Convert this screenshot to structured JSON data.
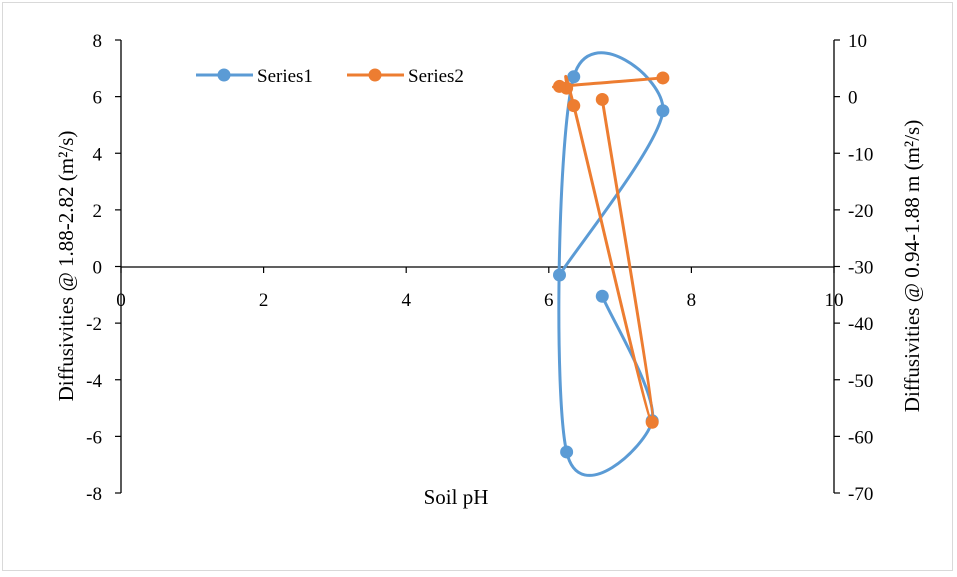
{
  "chart_data": {
    "type": "scatter",
    "xlabel": "Soil pH",
    "ylabel_left": "Diffusivities @ 1.88-2.82 (m²/s)",
    "ylabel_right": "Diffusivities @ 0.94-1.88  m (m²/s)",
    "xlim": [
      0,
      10
    ],
    "ylim_left": [
      -8,
      8
    ],
    "ylim_right": [
      -70,
      10
    ],
    "x_ticks": [
      "0",
      "2",
      "4",
      "6",
      "8",
      "10"
    ],
    "y_left_ticks": [
      "8",
      "6",
      "4",
      "2",
      "0",
      "-2",
      "-4",
      "-6",
      "-8"
    ],
    "y_right_ticks": [
      "10",
      "0",
      "-10",
      "-20",
      "-30",
      "-40",
      "-50",
      "-60",
      "-70"
    ],
    "grid": false,
    "legend_position": "top-left",
    "series": [
      {
        "name": "Series1",
        "axis": "left",
        "color": "#5b9bd5",
        "x": [
          6.75,
          7.45,
          6.25,
          6.35,
          7.6,
          6.15
        ],
        "y": [
          -1.05,
          -5.45,
          -6.55,
          6.7,
          5.5,
          -0.3
        ]
      },
      {
        "name": "Series2",
        "axis": "right",
        "color": "#ed7d31",
        "x": [
          6.75,
          7.45,
          6.35,
          6.25,
          6.15,
          7.6
        ],
        "y": [
          -0.5,
          -57.5,
          -1.6,
          1.5,
          1.8,
          3.3
        ]
      }
    ]
  }
}
